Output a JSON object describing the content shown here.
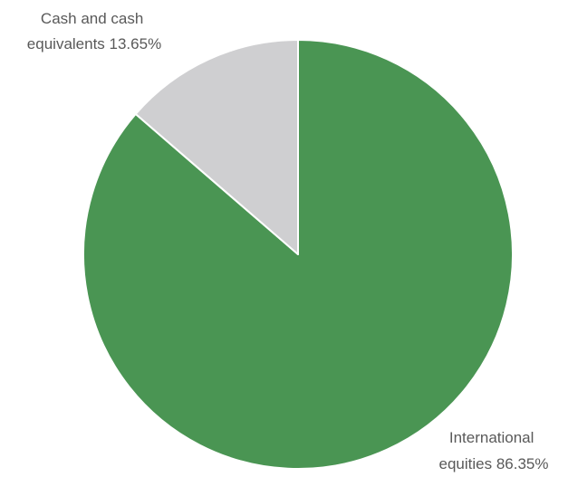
{
  "chart_data": {
    "type": "pie",
    "title": "",
    "categories": [
      "International equities",
      "Cash and cash equivalents"
    ],
    "values": [
      86.35,
      13.65
    ],
    "unit": "%",
    "colors": [
      "#4a9553",
      "#cfcfd1"
    ],
    "edge_color": "#ffffff",
    "start_angle_deg": 0,
    "direction": "clockwise",
    "labels": [
      {
        "lines": [
          "International",
          "equities 86.35%"
        ]
      },
      {
        "lines": [
          "Cash and cash",
          "equivalents 13.65%"
        ]
      }
    ]
  }
}
